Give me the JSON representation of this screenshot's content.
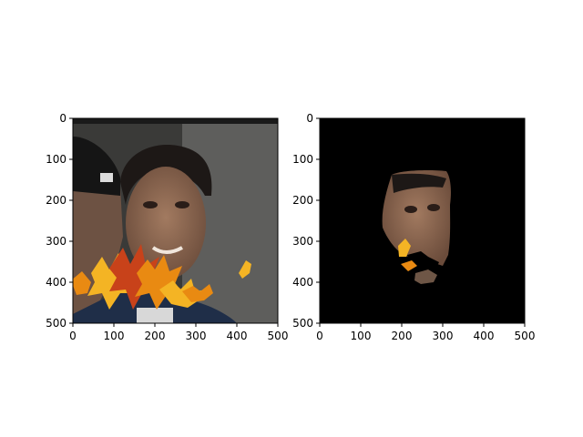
{
  "colors": {
    "background": "#ffffff",
    "axes_frame": "#000000",
    "mask_fill": "#000000",
    "photo_dark": "#2b2b2a",
    "photo_wall": "#5e5e5c",
    "leaf_orange": "#e98a12",
    "leaf_yellow": "#f4b424",
    "leaf_red": "#c8421a",
    "skin": "#8b6a55"
  },
  "chart_data": [
    {
      "type": "image",
      "panel": "left",
      "content": "photo-with-leaf-occluders",
      "xlim": [
        0,
        500
      ],
      "ylim": [
        500,
        0
      ],
      "xticks": [
        "0",
        "100",
        "200",
        "300",
        "400",
        "500"
      ],
      "yticks": [
        "0",
        "100",
        "200",
        "300",
        "400",
        "500"
      ],
      "grid": false
    },
    {
      "type": "image",
      "panel": "right",
      "content": "masked-face-region",
      "xlim": [
        0,
        500
      ],
      "ylim": [
        500,
        0
      ],
      "xticks": [
        "0",
        "100",
        "200",
        "300",
        "400",
        "500"
      ],
      "yticks": [
        "0",
        "100",
        "200",
        "300",
        "400",
        "500"
      ],
      "grid": false
    }
  ]
}
